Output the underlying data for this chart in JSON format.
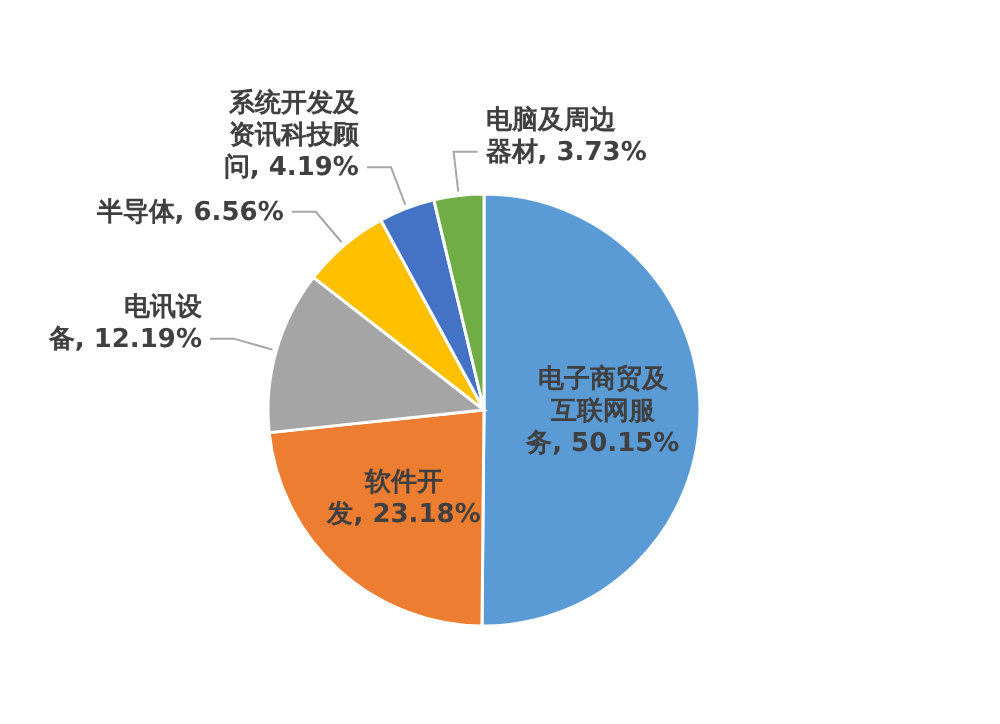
{
  "chart_data": {
    "type": "pie",
    "categories": [
      "电子商贸及互联网服务",
      "软件开发",
      "电讯设备",
      "半导体",
      "系统开发及资讯科技顾问",
      "电脑及周边器材"
    ],
    "values": [
      50.15,
      23.18,
      12.19,
      6.56,
      4.19,
      3.73
    ],
    "colors": [
      "#5b9bd5",
      "#ed7d31",
      "#a5a5a5",
      "#ffc000",
      "#4472c4",
      "#70ad47"
    ],
    "value_labels": [
      "50.15%",
      "23.18%",
      "12.19%",
      "6.56%",
      "4.19%",
      "3.73%"
    ]
  }
}
